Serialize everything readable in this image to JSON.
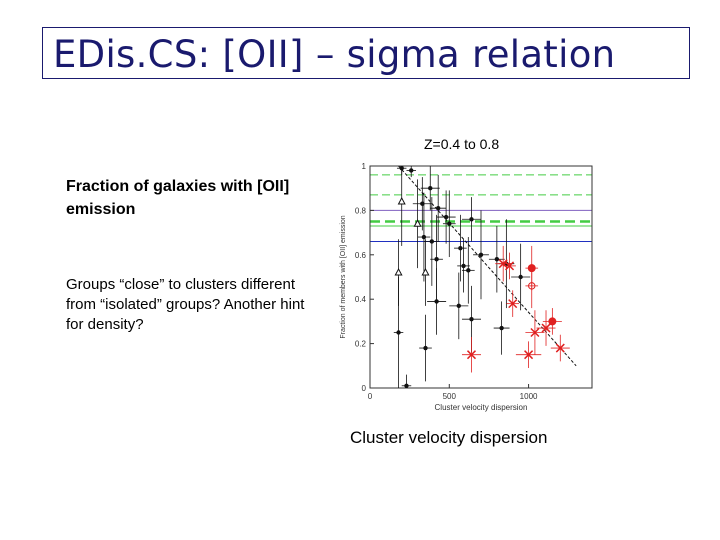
{
  "slide": {
    "title": "EDis.CS: [OII] – sigma relation",
    "subtitle": "Z=0.4 to 0.8",
    "text_bold": "Fraction of galaxies with [OII] emission",
    "text_body": "Groups “close” to clusters different from “isolated” groups? Another hint for density?",
    "x_caption": "Cluster velocity dispersion"
  },
  "chart_data": {
    "type": "scatter",
    "xlabel": "Cluster velocity dispersion",
    "ylabel": "Fraction of members with [OII] emission",
    "xlim": [
      0,
      1400
    ],
    "ylim": [
      0,
      1
    ],
    "xticks": [
      0,
      500,
      1000
    ],
    "yticks": [
      0,
      0.2,
      0.4,
      0.6,
      0.8,
      1
    ],
    "xtick_labels": [
      "0",
      "500",
      "1000"
    ],
    "ytick_labels": [
      "0",
      "0.2",
      "0.4",
      "0.6",
      "0.8",
      "1"
    ],
    "colors": {
      "black": "#111111",
      "red": "#e02020",
      "green": "#44cc44",
      "blue": "#2030c0",
      "purple": "#8060c0"
    },
    "hlines": [
      {
        "y": 0.96,
        "color": "green",
        "style": "dashed"
      },
      {
        "y": 0.87,
        "color": "green",
        "style": "dashed"
      },
      {
        "y": 0.8,
        "color": "purple",
        "style": "solid"
      },
      {
        "y": 0.75,
        "color": "green",
        "style": "dashed-thick"
      },
      {
        "y": 0.73,
        "color": "green",
        "style": "solid"
      },
      {
        "y": 0.66,
        "color": "blue",
        "style": "solid"
      }
    ],
    "fit_line": {
      "x1": 180,
      "y1": 1.0,
      "x2": 1300,
      "y2": 0.1
    },
    "series": [
      {
        "marker": "filled-circle",
        "color": "black",
        "points": [
          {
            "x": 200,
            "y": 0.99,
            "yerr": 0.03,
            "xerr": 30
          },
          {
            "x": 260,
            "y": 0.98,
            "yerr": 0.03,
            "xerr": 30
          },
          {
            "x": 380,
            "y": 0.9,
            "yerr": 0.1,
            "xerr": 60
          },
          {
            "x": 330,
            "y": 0.83,
            "yerr": 0.12,
            "xerr": 60
          },
          {
            "x": 430,
            "y": 0.81,
            "yerr": 0.15,
            "xerr": 50
          },
          {
            "x": 480,
            "y": 0.77,
            "yerr": 0.12,
            "xerr": 60
          },
          {
            "x": 500,
            "y": 0.74,
            "yerr": 0.15,
            "xerr": 40
          },
          {
            "x": 640,
            "y": 0.76,
            "yerr": 0.1,
            "xerr": 60
          },
          {
            "x": 340,
            "y": 0.68,
            "yerr": 0.2,
            "xerr": 40
          },
          {
            "x": 390,
            "y": 0.66,
            "yerr": 0.2,
            "xerr": 50
          },
          {
            "x": 570,
            "y": 0.63,
            "yerr": 0.15,
            "xerr": 40
          },
          {
            "x": 420,
            "y": 0.58,
            "yerr": 0.2,
            "xerr": 40
          },
          {
            "x": 590,
            "y": 0.55,
            "yerr": 0.12,
            "xerr": 40
          },
          {
            "x": 620,
            "y": 0.53,
            "yerr": 0.15,
            "xerr": 40
          },
          {
            "x": 700,
            "y": 0.6,
            "yerr": 0.2,
            "xerr": 50
          },
          {
            "x": 800,
            "y": 0.58,
            "yerr": 0.15,
            "xerr": 50
          },
          {
            "x": 860,
            "y": 0.56,
            "yerr": 0.2,
            "xerr": 50
          },
          {
            "x": 950,
            "y": 0.5,
            "yerr": 0.15,
            "xerr": 60
          },
          {
            "x": 420,
            "y": 0.39,
            "yerr": 0.15,
            "xerr": 60
          },
          {
            "x": 560,
            "y": 0.37,
            "yerr": 0.15,
            "xerr": 60
          },
          {
            "x": 640,
            "y": 0.31,
            "yerr": 0.15,
            "xerr": 60
          },
          {
            "x": 830,
            "y": 0.27,
            "yerr": 0.12,
            "xerr": 50
          },
          {
            "x": 180,
            "y": 0.25,
            "yerr": 0.25,
            "xerr": 30
          },
          {
            "x": 350,
            "y": 0.18,
            "yerr": 0.15,
            "xerr": 40
          },
          {
            "x": 230,
            "y": 0.01,
            "yerr": 0.05,
            "xerr": 30
          }
        ]
      },
      {
        "marker": "open-triangle",
        "color": "black",
        "points": [
          {
            "x": 200,
            "y": 0.84,
            "yerr": 0.2
          },
          {
            "x": 300,
            "y": 0.74,
            "yerr": 0.2
          },
          {
            "x": 180,
            "y": 0.52,
            "yerr": 0.15
          },
          {
            "x": 350,
            "y": 0.52,
            "yerr": 0.15
          }
        ]
      },
      {
        "marker": "x",
        "color": "red",
        "points": [
          {
            "x": 840,
            "y": 0.56,
            "yerr": 0.08,
            "xerr": 50
          },
          {
            "x": 880,
            "y": 0.55,
            "yerr": 0.06,
            "xerr": 40
          },
          {
            "x": 900,
            "y": 0.38,
            "yerr": 0.06,
            "xerr": 40
          },
          {
            "x": 1040,
            "y": 0.25,
            "yerr": 0.1,
            "xerr": 60
          },
          {
            "x": 1110,
            "y": 0.27,
            "yerr": 0.08,
            "xerr": 60
          },
          {
            "x": 1200,
            "y": 0.18,
            "yerr": 0.06,
            "xerr": 60
          },
          {
            "x": 1000,
            "y": 0.15,
            "yerr": 0.06,
            "xerr": 80
          },
          {
            "x": 640,
            "y": 0.15,
            "yerr": 0.08,
            "xerr": 60
          }
        ]
      },
      {
        "marker": "filled-circle",
        "color": "red",
        "points": [
          {
            "x": 1150,
            "y": 0.3,
            "yerr": 0.06,
            "xerr": 60
          },
          {
            "x": 1020,
            "y": 0.54,
            "yerr": 0.1,
            "xerr": 40
          }
        ]
      },
      {
        "marker": "open-circle",
        "color": "red",
        "points": [
          {
            "x": 1020,
            "y": 0.46,
            "yerr": 0.1,
            "xerr": 40
          }
        ]
      }
    ]
  }
}
